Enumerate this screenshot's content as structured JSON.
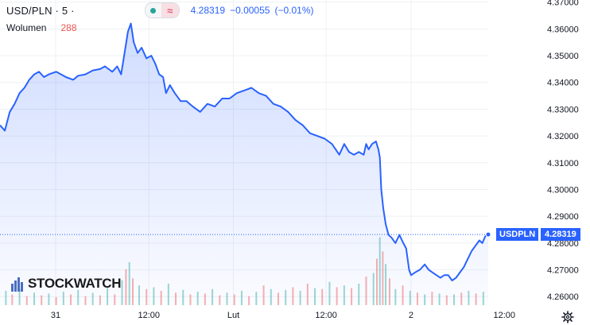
{
  "legend": {
    "symbol": "USD/PLN · 5 ·",
    "price": "4.28319",
    "change": "−0.00055",
    "change_pct": "(−0.01%)",
    "volume_label": "Wolumen",
    "volume_value": "288"
  },
  "last_price_tag": {
    "name": "USDPLN",
    "value": "4.28319"
  },
  "brand": {
    "logo_text": "STOCKWATCH"
  },
  "colors": {
    "line": "#2962ff",
    "area_top": "#2962ff",
    "volume_up": "#26a69a",
    "volume_down": "#ef5350",
    "grid": "#eef0f3",
    "text": "#131722"
  },
  "chart_data": {
    "type": "area",
    "x_axis_labels": [
      {
        "label": "31",
        "t": 0.114
      },
      {
        "label": "12:00",
        "t": 0.305
      },
      {
        "label": "Lut",
        "t": 0.478
      },
      {
        "label": "12:00",
        "t": 0.668
      },
      {
        "label": "2",
        "t": 0.842
      },
      {
        "label": "12:00",
        "t": 1.033
      }
    ],
    "y_ticks": [
      4.26,
      4.27,
      4.28,
      4.29,
      4.3,
      4.31,
      4.32,
      4.33,
      4.34,
      4.35,
      4.36,
      4.37
    ],
    "y_tick_labels": [
      "4.26000",
      "4.27000",
      "4.28000",
      "4.29000",
      "4.30000",
      "4.31000",
      "4.32000",
      "4.33000",
      "4.34000",
      "4.35000",
      "4.36000",
      "4.37000"
    ],
    "ylim": [
      4.2568,
      4.3708
    ],
    "series": [
      {
        "points": [
          [
            0.0,
            4.324
          ],
          [
            0.01,
            4.322
          ],
          [
            0.02,
            4.329
          ],
          [
            0.03,
            4.332
          ],
          [
            0.04,
            4.336
          ],
          [
            0.05,
            4.338
          ],
          [
            0.06,
            4.341
          ],
          [
            0.07,
            4.343
          ],
          [
            0.08,
            4.344
          ],
          [
            0.09,
            4.342
          ],
          [
            0.1,
            4.343
          ],
          [
            0.115,
            4.344
          ],
          [
            0.125,
            4.343
          ],
          [
            0.135,
            4.342
          ],
          [
            0.15,
            4.341
          ],
          [
            0.16,
            4.3425
          ],
          [
            0.175,
            4.343
          ],
          [
            0.19,
            4.3445
          ],
          [
            0.205,
            4.345
          ],
          [
            0.215,
            4.346
          ],
          [
            0.23,
            4.344
          ],
          [
            0.24,
            4.346
          ],
          [
            0.248,
            4.343
          ],
          [
            0.256,
            4.352
          ],
          [
            0.262,
            4.359
          ],
          [
            0.268,
            4.362
          ],
          [
            0.274,
            4.355
          ],
          [
            0.282,
            4.351
          ],
          [
            0.29,
            4.353
          ],
          [
            0.3,
            4.349
          ],
          [
            0.31,
            4.35
          ],
          [
            0.318,
            4.347
          ],
          [
            0.326,
            4.343
          ],
          [
            0.334,
            4.342
          ],
          [
            0.34,
            4.336
          ],
          [
            0.348,
            4.339
          ],
          [
            0.358,
            4.336
          ],
          [
            0.37,
            4.333
          ],
          [
            0.382,
            4.333
          ],
          [
            0.395,
            4.331
          ],
          [
            0.41,
            4.329
          ],
          [
            0.425,
            4.332
          ],
          [
            0.44,
            4.331
          ],
          [
            0.455,
            4.334
          ],
          [
            0.47,
            4.334
          ],
          [
            0.485,
            4.336
          ],
          [
            0.5,
            4.337
          ],
          [
            0.515,
            4.338
          ],
          [
            0.53,
            4.336
          ],
          [
            0.545,
            4.335
          ],
          [
            0.56,
            4.332
          ],
          [
            0.575,
            4.331
          ],
          [
            0.59,
            4.329
          ],
          [
            0.605,
            4.326
          ],
          [
            0.62,
            4.324
          ],
          [
            0.635,
            4.321
          ],
          [
            0.65,
            4.32
          ],
          [
            0.665,
            4.319
          ],
          [
            0.68,
            4.317
          ],
          [
            0.695,
            4.313
          ],
          [
            0.705,
            4.317
          ],
          [
            0.715,
            4.314
          ],
          [
            0.725,
            4.313
          ],
          [
            0.735,
            4.314
          ],
          [
            0.745,
            4.313
          ],
          [
            0.75,
            4.317
          ],
          [
            0.755,
            4.315
          ],
          [
            0.762,
            4.317
          ],
          [
            0.77,
            4.318
          ],
          [
            0.775,
            4.315
          ],
          [
            0.778,
            4.312
          ],
          [
            0.781,
            4.3
          ],
          [
            0.785,
            4.293
          ],
          [
            0.79,
            4.287
          ],
          [
            0.796,
            4.283
          ],
          [
            0.802,
            4.282
          ],
          [
            0.81,
            4.28
          ],
          [
            0.818,
            4.283
          ],
          [
            0.826,
            4.28
          ],
          [
            0.832,
            4.278
          ],
          [
            0.838,
            4.27
          ],
          [
            0.842,
            4.268
          ],
          [
            0.85,
            4.269
          ],
          [
            0.86,
            4.27
          ],
          [
            0.87,
            4.272
          ],
          [
            0.878,
            4.27
          ],
          [
            0.886,
            4.269
          ],
          [
            0.894,
            4.268
          ],
          [
            0.902,
            4.267
          ],
          [
            0.91,
            4.268
          ],
          [
            0.918,
            4.268
          ],
          [
            0.926,
            4.266
          ],
          [
            0.934,
            4.267
          ],
          [
            0.942,
            4.269
          ],
          [
            0.95,
            4.271
          ],
          [
            0.958,
            4.274
          ],
          [
            0.966,
            4.277
          ],
          [
            0.974,
            4.279
          ],
          [
            0.982,
            4.281
          ],
          [
            0.988,
            4.28
          ],
          [
            0.994,
            4.2825
          ],
          [
            1.0,
            4.2832
          ]
        ]
      }
    ],
    "volume": {
      "max": 400,
      "bars": [
        [
          0.012,
          80,
          1
        ],
        [
          0.025,
          60,
          0
        ],
        [
          0.04,
          90,
          1
        ],
        [
          0.055,
          50,
          0
        ],
        [
          0.07,
          70,
          1
        ],
        [
          0.085,
          55,
          0
        ],
        [
          0.1,
          65,
          1
        ],
        [
          0.115,
          45,
          0
        ],
        [
          0.13,
          75,
          1
        ],
        [
          0.145,
          60,
          0
        ],
        [
          0.16,
          85,
          1
        ],
        [
          0.175,
          50,
          0
        ],
        [
          0.19,
          70,
          1
        ],
        [
          0.205,
          55,
          0
        ],
        [
          0.22,
          95,
          1
        ],
        [
          0.235,
          60,
          0
        ],
        [
          0.25,
          140,
          1
        ],
        [
          0.258,
          200,
          0
        ],
        [
          0.265,
          240,
          1
        ],
        [
          0.272,
          150,
          0
        ],
        [
          0.285,
          110,
          1
        ],
        [
          0.3,
          90,
          0
        ],
        [
          0.315,
          100,
          1
        ],
        [
          0.33,
          80,
          0
        ],
        [
          0.345,
          120,
          1
        ],
        [
          0.36,
          70,
          0
        ],
        [
          0.375,
          85,
          1
        ],
        [
          0.39,
          60,
          0
        ],
        [
          0.405,
          75,
          1
        ],
        [
          0.42,
          65,
          0
        ],
        [
          0.435,
          90,
          1
        ],
        [
          0.45,
          55,
          0
        ],
        [
          0.465,
          70,
          1
        ],
        [
          0.48,
          60,
          0
        ],
        [
          0.495,
          80,
          1
        ],
        [
          0.51,
          50,
          0
        ],
        [
          0.525,
          75,
          1
        ],
        [
          0.54,
          110,
          0
        ],
        [
          0.555,
          90,
          1
        ],
        [
          0.57,
          70,
          0
        ],
        [
          0.585,
          85,
          1
        ],
        [
          0.6,
          100,
          0
        ],
        [
          0.615,
          80,
          1
        ],
        [
          0.63,
          120,
          0
        ],
        [
          0.645,
          95,
          1
        ],
        [
          0.66,
          90,
          0
        ],
        [
          0.675,
          130,
          1
        ],
        [
          0.69,
          100,
          0
        ],
        [
          0.705,
          110,
          1
        ],
        [
          0.72,
          95,
          0
        ],
        [
          0.735,
          120,
          1
        ],
        [
          0.75,
          160,
          0
        ],
        [
          0.765,
          180,
          1
        ],
        [
          0.772,
          260,
          0
        ],
        [
          0.778,
          380,
          1
        ],
        [
          0.784,
          300,
          0
        ],
        [
          0.79,
          230,
          1
        ],
        [
          0.798,
          150,
          0
        ],
        [
          0.81,
          90,
          1
        ],
        [
          0.825,
          110,
          0
        ],
        [
          0.84,
          80,
          1
        ],
        [
          0.855,
          70,
          0
        ],
        [
          0.87,
          60,
          1
        ],
        [
          0.885,
          75,
          0
        ],
        [
          0.9,
          65,
          1
        ],
        [
          0.915,
          55,
          0
        ],
        [
          0.93,
          60,
          1
        ],
        [
          0.945,
          70,
          0
        ],
        [
          0.96,
          80,
          1
        ],
        [
          0.975,
          65,
          0
        ],
        [
          0.99,
          75,
          1
        ]
      ]
    }
  }
}
